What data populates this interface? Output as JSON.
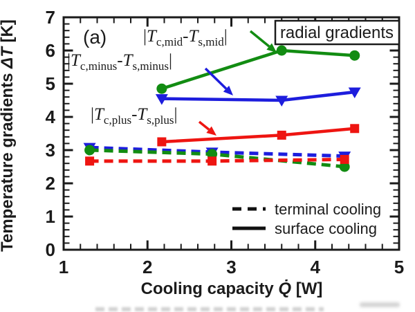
{
  "figure": {
    "panel_label": "(a)",
    "corner_box_label": "radial gradients"
  },
  "chart_data": {
    "type": "line",
    "title": "",
    "xlabel_parts": {
      "pre": "Cooling capacity ",
      "symbol": "Q̇",
      "post": " [W]"
    },
    "ylabel_parts": {
      "pre": "Temperature gradients ",
      "symbol": "ΔT",
      "post": " [K]"
    },
    "xlim": [
      1,
      5
    ],
    "ylim": [
      0,
      7
    ],
    "x_major_ticks": [
      1,
      2,
      3,
      4,
      5
    ],
    "y_major_ticks": [
      0,
      1,
      2,
      3,
      4,
      5,
      6,
      7
    ],
    "minor_tick_step": 0.2,
    "grid": false,
    "legend_position": "bottom-right-inside",
    "colors": {
      "mid": "#128c12",
      "minus": "#1d1ddd",
      "plus": "#ee1511",
      "axis": "#1b1b1b"
    },
    "series": [
      {
        "id": "minus-terminal",
        "group": "minus",
        "cooling": "terminal cooling",
        "style": "dashed",
        "marker": "triangle-down",
        "x": [
          1.31,
          2.77,
          4.35
        ],
        "y": [
          3.08,
          2.94,
          2.82
        ]
      },
      {
        "id": "mid-terminal",
        "group": "mid",
        "cooling": "terminal cooling",
        "style": "dashed",
        "marker": "circle",
        "x": [
          1.31,
          2.77,
          4.35
        ],
        "y": [
          3.0,
          2.88,
          2.5
        ]
      },
      {
        "id": "plus-terminal",
        "group": "plus",
        "cooling": "terminal cooling",
        "style": "dashed",
        "marker": "square",
        "x": [
          1.31,
          2.77,
          4.35
        ],
        "y": [
          2.67,
          2.67,
          2.72
        ]
      },
      {
        "id": "plus-surface",
        "group": "plus",
        "cooling": "surface cooling",
        "style": "solid",
        "marker": "square",
        "x": [
          2.17,
          3.6,
          4.47
        ],
        "y": [
          3.25,
          3.45,
          3.65
        ]
      },
      {
        "id": "minus-surface",
        "group": "minus",
        "cooling": "surface cooling",
        "style": "solid",
        "marker": "triangle-down",
        "x": [
          2.17,
          3.6,
          4.47
        ],
        "y": [
          4.55,
          4.5,
          4.75
        ]
      },
      {
        "id": "mid-surface",
        "group": "mid",
        "cooling": "surface cooling",
        "style": "solid",
        "marker": "circle",
        "x": [
          2.17,
          3.6,
          4.47
        ],
        "y": [
          4.85,
          6.0,
          5.85
        ]
      }
    ],
    "series_labels": {
      "mid": {
        "open": "|",
        "t1": "T",
        "sub1": "c,mid",
        "minus": "-",
        "t2": "T",
        "sub2": "s,mid",
        "close": "|"
      },
      "minus": {
        "open": "|",
        "t1": "T",
        "sub1": "c,minus",
        "minus": "-",
        "t2": "T",
        "sub2": "s,minus",
        "close": "|"
      },
      "plus": {
        "open": "|",
        "t1": "T",
        "sub1": "c,plus",
        "minus": "-",
        "t2": "T",
        "sub2": "s,plus",
        "close": "|"
      }
    },
    "arrows": [
      {
        "color": "mid",
        "from": [
          362,
          45
        ],
        "to": [
          400,
          76
        ]
      },
      {
        "color": "minus",
        "from": [
          297,
          99
        ],
        "to": [
          337,
          138
        ]
      },
      {
        "color": "plus",
        "from": [
          288,
          176
        ],
        "to": [
          313,
          196
        ]
      }
    ],
    "legend": {
      "entries": [
        {
          "style": "dashed",
          "label": "terminal cooling"
        },
        {
          "style": "solid",
          "label": "surface cooling"
        }
      ]
    }
  }
}
